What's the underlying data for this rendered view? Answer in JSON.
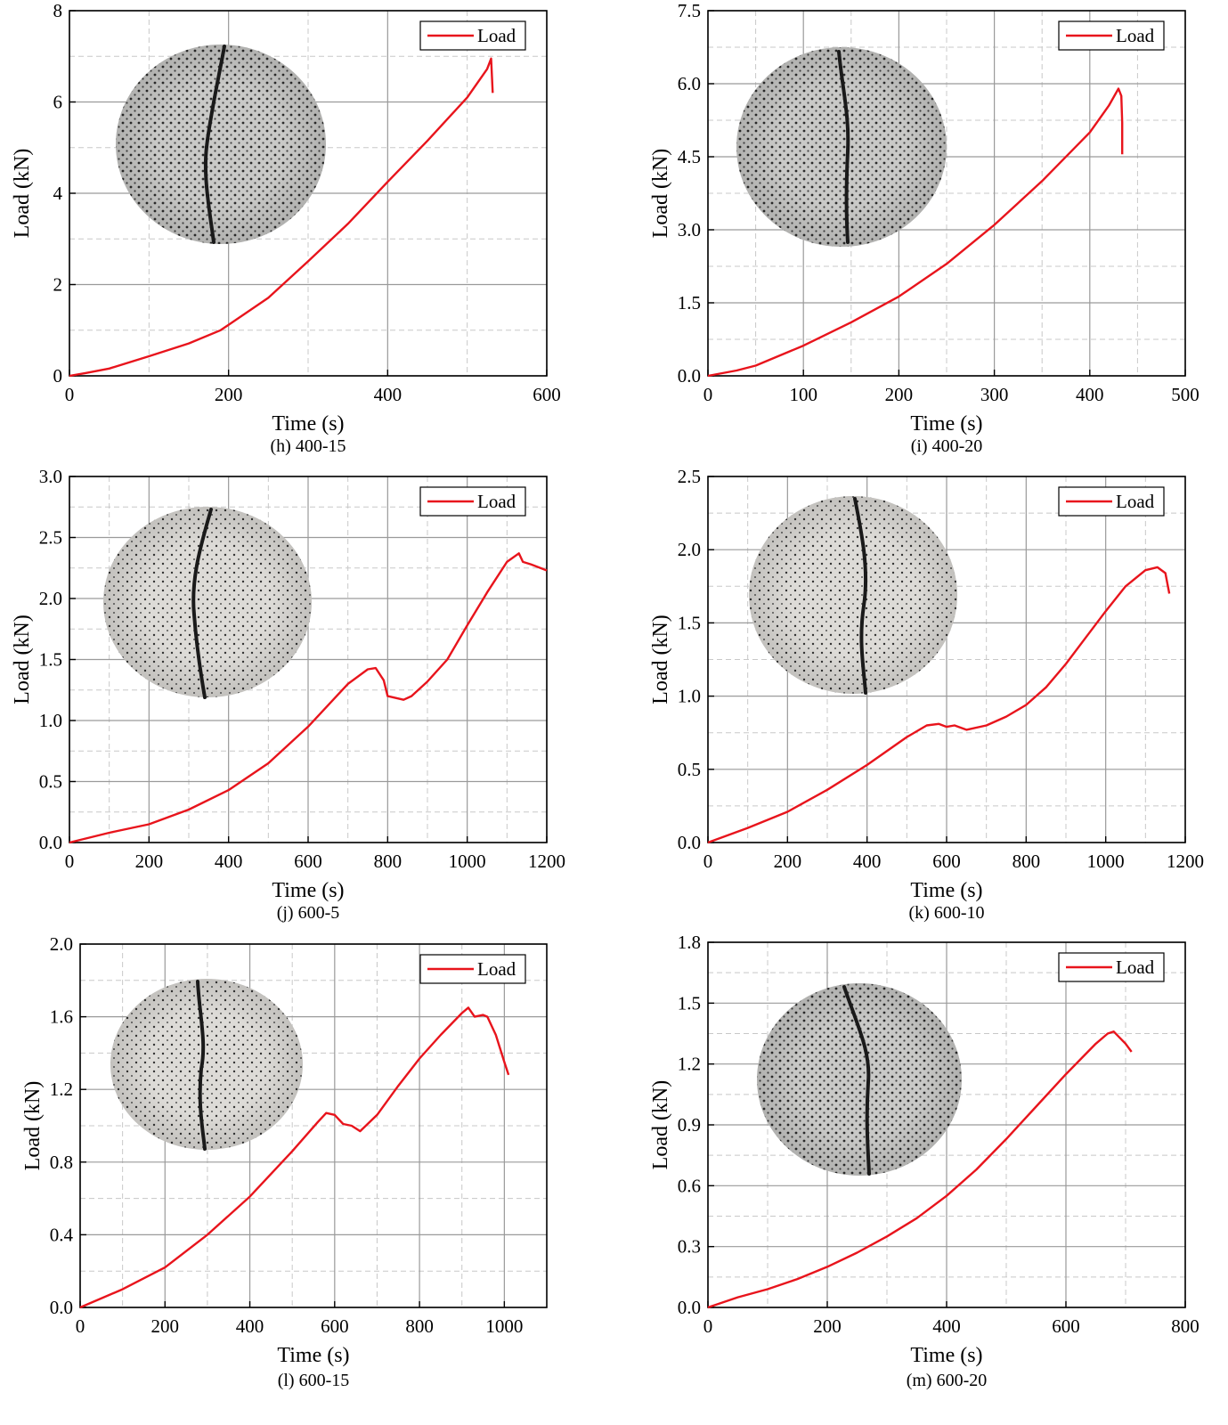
{
  "chart_data": [
    {
      "type": "line",
      "caption": "(h) 400-15",
      "xlabel": "Time (s)",
      "ylabel": "Load (kN)",
      "xlim": [
        0,
        600
      ],
      "ylim": [
        0,
        8
      ],
      "xticks": [
        "0",
        "200",
        "400",
        "600"
      ],
      "yticks": [
        "0",
        "2",
        "4",
        "6",
        "8"
      ],
      "grid": true,
      "legend": "top-right",
      "series": [
        {
          "name": "Load",
          "color": "#e8141c",
          "x": [
            0,
            20,
            50,
            100,
            150,
            190,
            250,
            300,
            350,
            400,
            450,
            500,
            525,
            530,
            532
          ],
          "y": [
            0,
            0.06,
            0.16,
            0.43,
            0.71,
            1.0,
            1.71,
            2.51,
            3.33,
            4.25,
            5.15,
            6.1,
            6.72,
            6.95,
            6.2
          ]
        }
      ],
      "inset_photo": "specimen-photo"
    },
    {
      "type": "line",
      "caption": "(i) 400-20",
      "xlabel": "Time (s)",
      "ylabel": "Load (kN)",
      "xlim": [
        0,
        500
      ],
      "ylim": [
        0,
        7.5
      ],
      "xticks": [
        "0",
        "100",
        "200",
        "300",
        "400",
        "500"
      ],
      "yticks": [
        "0.0",
        "1.5",
        "3.0",
        "4.5",
        "6.0",
        "7.5"
      ],
      "grid": true,
      "legend": "top-right",
      "series": [
        {
          "name": "Load",
          "color": "#e8141c",
          "x": [
            0,
            30,
            50,
            100,
            150,
            200,
            250,
            300,
            350,
            400,
            420,
            430,
            433,
            434,
            434
          ],
          "y": [
            0,
            0.11,
            0.21,
            0.62,
            1.1,
            1.63,
            2.3,
            3.1,
            4.0,
            5.0,
            5.55,
            5.9,
            5.75,
            5.2,
            4.55
          ]
        }
      ],
      "inset_photo": "specimen-photo"
    },
    {
      "type": "line",
      "caption": "(j) 600-5",
      "xlabel": "Time (s)",
      "ylabel": "Load (kN)",
      "xlim": [
        0,
        1200
      ],
      "ylim": [
        0,
        3.0
      ],
      "xticks": [
        "0",
        "200",
        "400",
        "600",
        "800",
        "1000",
        "1200"
      ],
      "yticks": [
        "0.0",
        "0.5",
        "1.0",
        "1.5",
        "2.0",
        "2.5",
        "3.0"
      ],
      "grid": true,
      "legend": "top-right",
      "series": [
        {
          "name": "Load",
          "color": "#e8141c",
          "x": [
            0,
            100,
            200,
            300,
            400,
            500,
            600,
            700,
            750,
            770,
            790,
            800,
            840,
            860,
            900,
            950,
            1000,
            1050,
            1100,
            1130,
            1140,
            1160,
            1200
          ],
          "y": [
            0,
            0.08,
            0.15,
            0.27,
            0.43,
            0.65,
            0.95,
            1.3,
            1.42,
            1.43,
            1.33,
            1.2,
            1.17,
            1.2,
            1.32,
            1.5,
            1.78,
            2.05,
            2.3,
            2.37,
            2.3,
            2.28,
            2.23
          ]
        }
      ],
      "inset_photo": "specimen-photo"
    },
    {
      "type": "line",
      "caption": "(k) 600-10",
      "xlabel": "Time (s)",
      "ylabel": "Load (kN)",
      "xlim": [
        0,
        1200
      ],
      "ylim": [
        0,
        2.5
      ],
      "xticks": [
        "0",
        "200",
        "400",
        "600",
        "800",
        "1000",
        "1200"
      ],
      "yticks": [
        "0.0",
        "0.5",
        "1.0",
        "1.5",
        "2.0",
        "2.5"
      ],
      "grid": true,
      "legend": "top-right",
      "series": [
        {
          "name": "Load",
          "color": "#e8141c",
          "x": [
            0,
            100,
            200,
            300,
            400,
            500,
            550,
            580,
            600,
            620,
            650,
            700,
            750,
            800,
            850,
            900,
            950,
            1000,
            1050,
            1100,
            1130,
            1150,
            1160
          ],
          "y": [
            0,
            0.1,
            0.21,
            0.36,
            0.53,
            0.72,
            0.8,
            0.81,
            0.79,
            0.8,
            0.77,
            0.8,
            0.86,
            0.94,
            1.06,
            1.22,
            1.4,
            1.58,
            1.75,
            1.86,
            1.88,
            1.84,
            1.7
          ]
        }
      ],
      "inset_photo": "specimen-photo"
    },
    {
      "type": "line",
      "caption": "(l) 600-15",
      "xlabel": "Time (s)",
      "ylabel": "Load (kN)",
      "xlim": [
        0,
        1100
      ],
      "ylim": [
        0,
        2.0
      ],
      "xticks": [
        "0",
        "200",
        "400",
        "600",
        "800",
        "1000"
      ],
      "yticks": [
        "0.0",
        "0.4",
        "0.8",
        "1.2",
        "1.6",
        "2.0"
      ],
      "grid": true,
      "legend": "top-right",
      "series": [
        {
          "name": "Load",
          "color": "#e8141c",
          "x": [
            0,
            100,
            200,
            300,
            400,
            500,
            560,
            580,
            600,
            620,
            640,
            660,
            700,
            750,
            800,
            850,
            900,
            915,
            930,
            950,
            960,
            980,
            1000,
            1010
          ],
          "y": [
            0,
            0.1,
            0.22,
            0.4,
            0.61,
            0.86,
            1.02,
            1.07,
            1.06,
            1.01,
            1.0,
            0.97,
            1.06,
            1.22,
            1.37,
            1.5,
            1.62,
            1.65,
            1.6,
            1.61,
            1.6,
            1.5,
            1.35,
            1.28
          ]
        }
      ],
      "inset_photo": "specimen-photo"
    },
    {
      "type": "line",
      "caption": "(m) 600-20",
      "xlabel": "Time (s)",
      "ylabel": "Load (kN)",
      "xlim": [
        0,
        800
      ],
      "ylim": [
        0,
        1.8
      ],
      "xticks": [
        "0",
        "200",
        "400",
        "600",
        "800"
      ],
      "yticks": [
        "0.0",
        "0.3",
        "0.6",
        "0.9",
        "1.2",
        "1.5",
        "1.8"
      ],
      "grid": true,
      "legend": "top-right",
      "series": [
        {
          "name": "Load",
          "color": "#e8141c",
          "x": [
            0,
            50,
            100,
            150,
            200,
            250,
            300,
            350,
            400,
            450,
            500,
            550,
            600,
            650,
            670,
            680,
            690,
            700,
            710
          ],
          "y": [
            0,
            0.05,
            0.09,
            0.14,
            0.2,
            0.27,
            0.35,
            0.44,
            0.55,
            0.68,
            0.83,
            0.99,
            1.15,
            1.3,
            1.35,
            1.36,
            1.33,
            1.3,
            1.26
          ]
        }
      ],
      "inset_photo": "specimen-photo"
    }
  ]
}
